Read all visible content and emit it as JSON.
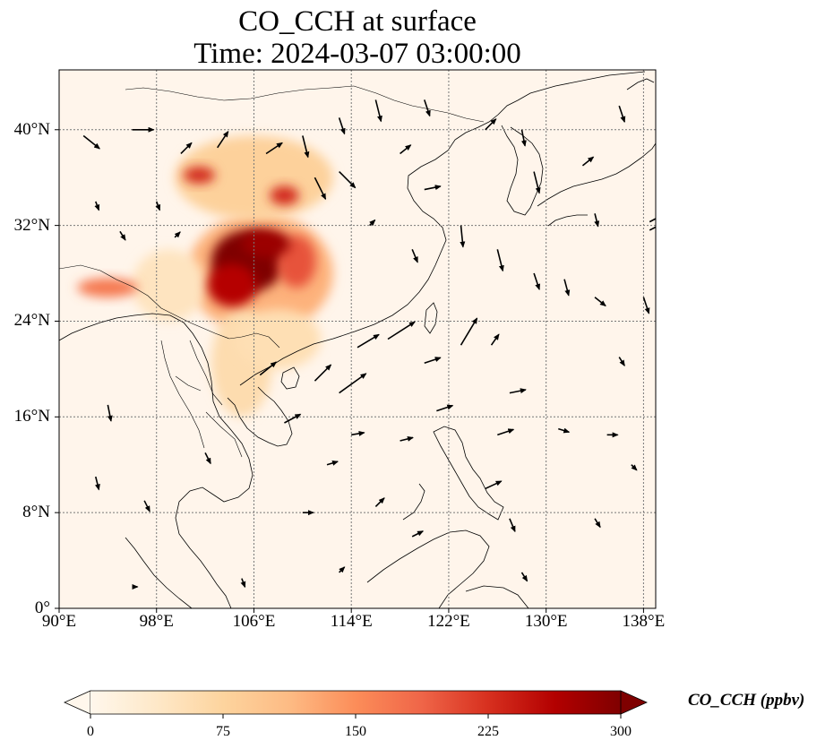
{
  "figure": {
    "title_line1": "CO_CCH at surface",
    "title_line2": "Time: 2024-03-07 03:00:00"
  },
  "map": {
    "projection": "PlateCarree",
    "lon_range": [
      90,
      139
    ],
    "lat_range": [
      0,
      45
    ],
    "gridlines": "dotted",
    "background_color": "#fff5eb",
    "lat_ticks": [
      {
        "value": 0,
        "label": "0°"
      },
      {
        "value": 8,
        "label": "8°N"
      },
      {
        "value": 16,
        "label": "16°N"
      },
      {
        "value": 24,
        "label": "24°N"
      },
      {
        "value": 32,
        "label": "32°N"
      },
      {
        "value": 40,
        "label": "40°N"
      }
    ],
    "lon_ticks": [
      {
        "value": 90,
        "label": "90°E"
      },
      {
        "value": 98,
        "label": "98°E"
      },
      {
        "value": 106,
        "label": "106°E"
      },
      {
        "value": 114,
        "label": "114°E"
      },
      {
        "value": 122,
        "label": "122°E"
      },
      {
        "value": 130,
        "label": "130°E"
      },
      {
        "value": 138,
        "label": "138°E"
      }
    ],
    "co_concentration_patches_ppbv": [
      {
        "lon": 105.5,
        "lat": 29.0,
        "rx": 3.0,
        "ry": 2.6,
        "value": 300
      },
      {
        "lon": 104.2,
        "lat": 27.0,
        "rx": 2.0,
        "ry": 1.8,
        "value": 260
      },
      {
        "lon": 107.0,
        "lat": 30.5,
        "rx": 2.0,
        "ry": 1.2,
        "value": 280
      },
      {
        "lon": 109.5,
        "lat": 29.0,
        "rx": 1.6,
        "ry": 2.2,
        "value": 200
      },
      {
        "lon": 106.5,
        "lat": 28.0,
        "rx": 6.0,
        "ry": 5.0,
        "value": 120
      },
      {
        "lon": 101.5,
        "lat": 36.2,
        "rx": 1.3,
        "ry": 0.7,
        "value": 230
      },
      {
        "lon": 108.5,
        "lat": 34.5,
        "rx": 1.2,
        "ry": 0.8,
        "value": 230
      },
      {
        "lon": 106.0,
        "lat": 36.0,
        "rx": 6.5,
        "ry": 3.5,
        "value": 80
      },
      {
        "lon": 94.0,
        "lat": 26.8,
        "rx": 2.5,
        "ry": 0.8,
        "value": 170
      },
      {
        "lon": 105.0,
        "lat": 20.5,
        "rx": 2.5,
        "ry": 4.5,
        "value": 60
      },
      {
        "lon": 108.0,
        "lat": 22.5,
        "rx": 3.5,
        "ry": 2.5,
        "value": 55
      },
      {
        "lon": 99.0,
        "lat": 27.0,
        "rx": 3.0,
        "ry": 3.0,
        "value": 45
      }
    ],
    "wind_vectors": [
      {
        "lon": 92,
        "lat": 39.5,
        "u": 1.5,
        "v": -1.2
      },
      {
        "lon": 96,
        "lat": 40,
        "u": 2,
        "v": 0
      },
      {
        "lon": 100,
        "lat": 38,
        "u": 1,
        "v": 1
      },
      {
        "lon": 103,
        "lat": 38.5,
        "u": 1,
        "v": 1.5
      },
      {
        "lon": 107,
        "lat": 38,
        "u": 1.5,
        "v": 1
      },
      {
        "lon": 110,
        "lat": 39.5,
        "u": 0.5,
        "v": -2
      },
      {
        "lon": 113,
        "lat": 41,
        "u": 0.5,
        "v": -1.5
      },
      {
        "lon": 116,
        "lat": 42.5,
        "u": 0.5,
        "v": -2
      },
      {
        "lon": 120,
        "lat": 42.5,
        "u": 0.5,
        "v": -1.5
      },
      {
        "lon": 118,
        "lat": 38,
        "u": 1,
        "v": 0.8
      },
      {
        "lon": 120,
        "lat": 35,
        "u": 1.5,
        "v": 0.3
      },
      {
        "lon": 111,
        "lat": 36,
        "u": 1,
        "v": -2
      },
      {
        "lon": 113,
        "lat": 36.5,
        "u": 1.5,
        "v": -1.5
      },
      {
        "lon": 125,
        "lat": 40,
        "u": 1,
        "v": 1
      },
      {
        "lon": 128,
        "lat": 40,
        "u": 0.3,
        "v": -1.5
      },
      {
        "lon": 129,
        "lat": 36.5,
        "u": 0.5,
        "v": -2
      },
      {
        "lon": 133,
        "lat": 37,
        "u": 1,
        "v": 0.8
      },
      {
        "lon": 136,
        "lat": 42,
        "u": 0.5,
        "v": -1.5
      },
      {
        "lon": 134,
        "lat": 33,
        "u": 0.3,
        "v": -1.2
      },
      {
        "lon": 138.5,
        "lat": 32.3,
        "u": 2.5,
        "v": 1.3
      },
      {
        "lon": 138.5,
        "lat": 31.6,
        "u": 2.5,
        "v": 1.3
      },
      {
        "lon": 126,
        "lat": 30,
        "u": 0.5,
        "v": -2
      },
      {
        "lon": 129,
        "lat": 28,
        "u": 0.5,
        "v": -1.5
      },
      {
        "lon": 131.5,
        "lat": 27.5,
        "u": 0.4,
        "v": -1.5
      },
      {
        "lon": 134,
        "lat": 26,
        "u": 1,
        "v": -0.8
      },
      {
        "lon": 138,
        "lat": 26,
        "u": 0.5,
        "v": -1.5
      },
      {
        "lon": 123,
        "lat": 32,
        "u": 0.2,
        "v": -2
      },
      {
        "lon": 119,
        "lat": 30,
        "u": 0.5,
        "v": -1.2
      },
      {
        "lon": 114.5,
        "lat": 21.8,
        "u": 2,
        "v": 1.2
      },
      {
        "lon": 117,
        "lat": 22.5,
        "u": 2.5,
        "v": 1.6
      },
      {
        "lon": 113,
        "lat": 18,
        "u": 2.5,
        "v": 1.8
      },
      {
        "lon": 111,
        "lat": 19,
        "u": 1.5,
        "v": 1.5
      },
      {
        "lon": 108.5,
        "lat": 15.5,
        "u": 1.5,
        "v": 0.8
      },
      {
        "lon": 106.5,
        "lat": 19.5,
        "u": 1.5,
        "v": 1.2
      },
      {
        "lon": 120,
        "lat": 20.5,
        "u": 1.5,
        "v": 0.5
      },
      {
        "lon": 123,
        "lat": 22,
        "u": 1.5,
        "v": 2.5
      },
      {
        "lon": 125.5,
        "lat": 22,
        "u": 0.7,
        "v": 1
      },
      {
        "lon": 127,
        "lat": 18,
        "u": 1.5,
        "v": 0.3
      },
      {
        "lon": 126,
        "lat": 14.5,
        "u": 1.5,
        "v": 0.5
      },
      {
        "lon": 121,
        "lat": 16.5,
        "u": 1.5,
        "v": 0.5
      },
      {
        "lon": 118,
        "lat": 14,
        "u": 1.2,
        "v": 0.3
      },
      {
        "lon": 114,
        "lat": 14.5,
        "u": 1.2,
        "v": 0.2
      },
      {
        "lon": 112,
        "lat": 12,
        "u": 1,
        "v": 0.3
      },
      {
        "lon": 125,
        "lat": 10,
        "u": 1.5,
        "v": 0.7
      },
      {
        "lon": 131,
        "lat": 15,
        "u": 1,
        "v": -0.3
      },
      {
        "lon": 135,
        "lat": 14.5,
        "u": 1,
        "v": 0
      },
      {
        "lon": 94,
        "lat": 17,
        "u": 0.3,
        "v": -1.5
      },
      {
        "lon": 93,
        "lat": 11,
        "u": 0.3,
        "v": -1.2
      },
      {
        "lon": 97,
        "lat": 9,
        "u": 0.5,
        "v": -1
      },
      {
        "lon": 102,
        "lat": 13,
        "u": 0.5,
        "v": -1
      },
      {
        "lon": 110,
        "lat": 8,
        "u": 1,
        "v": 0
      },
      {
        "lon": 116,
        "lat": 8.5,
        "u": 0.8,
        "v": 0.8
      },
      {
        "lon": 119,
        "lat": 6,
        "u": 1,
        "v": 0.5
      },
      {
        "lon": 127,
        "lat": 7.5,
        "u": 0.5,
        "v": -1.2
      },
      {
        "lon": 128,
        "lat": 3,
        "u": 0.5,
        "v": -0.8
      },
      {
        "lon": 96,
        "lat": 1.8,
        "u": 0.5,
        "v": 0
      },
      {
        "lon": 105,
        "lat": 2.5,
        "u": 0.3,
        "v": -0.8
      },
      {
        "lon": 113,
        "lat": 3,
        "u": 0.5,
        "v": 0.5
      },
      {
        "lon": 95,
        "lat": 31.5,
        "u": 0.5,
        "v": -0.8
      },
      {
        "lon": 99.5,
        "lat": 31,
        "u": 0.5,
        "v": 0.5
      },
      {
        "lon": 115.5,
        "lat": 32,
        "u": 0.5,
        "v": 0.5
      },
      {
        "lon": 93,
        "lat": 34,
        "u": 0.3,
        "v": -0.8
      },
      {
        "lon": 98,
        "lat": 34,
        "u": 0.3,
        "v": -0.8
      },
      {
        "lon": 136,
        "lat": 21,
        "u": 0.5,
        "v": -0.8
      },
      {
        "lon": 134,
        "lat": 7.5,
        "u": 0.5,
        "v": -0.8
      },
      {
        "lon": 137,
        "lat": 12,
        "u": 0.5,
        "v": -0.5
      }
    ]
  },
  "colorbar": {
    "label": "CO_CCH (ppbv)",
    "min": 0,
    "max": 300,
    "extend": "both",
    "colormap": "OrRd",
    "colors": [
      "#fff7ec",
      "#fee8c8",
      "#fdd49e",
      "#fdbb84",
      "#fc8d59",
      "#ef6548",
      "#d7301f",
      "#b30000",
      "#7f0000"
    ],
    "ticks": [
      {
        "value": 0,
        "label": "0"
      },
      {
        "value": 75,
        "label": "75"
      },
      {
        "value": 150,
        "label": "150"
      },
      {
        "value": 225,
        "label": "225"
      },
      {
        "value": 300,
        "label": "300"
      }
    ]
  }
}
